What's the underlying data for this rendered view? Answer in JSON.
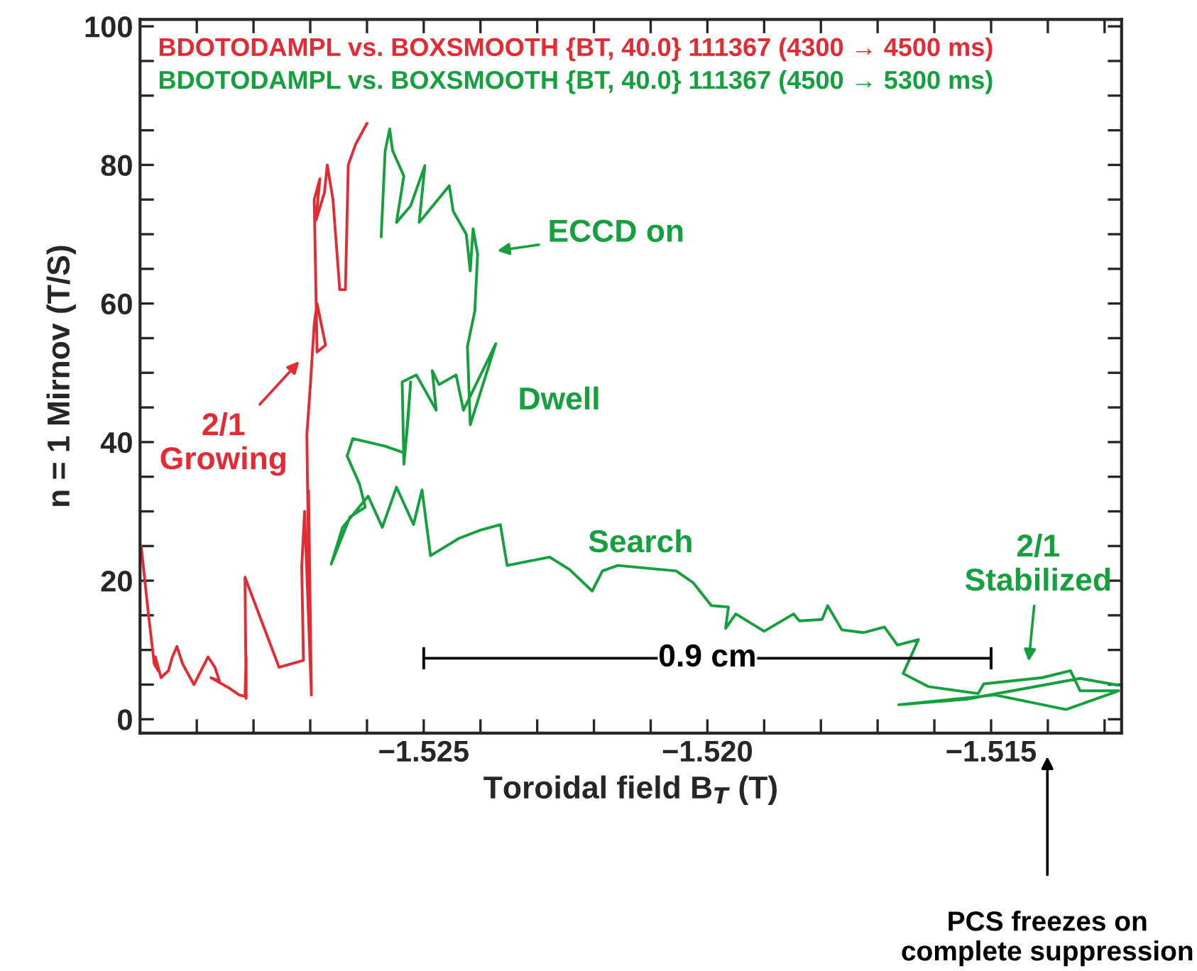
{
  "chart_data": {
    "type": "line",
    "xlabel": "Toroidal field B$_{T}$ (T)",
    "ylabel": "n = 1 Mirnov (T/S)",
    "xlim": [
      -1.53,
      -1.5127
    ],
    "ylim": [
      -2,
      101
    ],
    "xticks": [
      {
        "value": -1.529,
        "label": null
      },
      {
        "value": -1.528,
        "label": null
      },
      {
        "value": -1.527,
        "label": null
      },
      {
        "value": -1.526,
        "label": null
      },
      {
        "value": -1.525,
        "label": "−1.525"
      },
      {
        "value": -1.524,
        "label": null
      },
      {
        "value": -1.523,
        "label": null
      },
      {
        "value": -1.522,
        "label": null
      },
      {
        "value": -1.521,
        "label": null
      },
      {
        "value": -1.52,
        "label": "−1.520"
      },
      {
        "value": -1.519,
        "label": null
      },
      {
        "value": -1.518,
        "label": null
      },
      {
        "value": -1.517,
        "label": null
      },
      {
        "value": -1.516,
        "label": null
      },
      {
        "value": -1.515,
        "label": "−1.515"
      },
      {
        "value": -1.514,
        "label": null
      },
      {
        "value": -1.513,
        "label": null
      }
    ],
    "yticks": [
      0,
      {
        "value": 5,
        "label": null
      },
      {
        "value": 10,
        "label": null
      },
      {
        "value": 15,
        "label": null
      },
      20,
      {
        "value": 25,
        "label": null
      },
      {
        "value": 30,
        "label": null
      },
      {
        "value": 35,
        "label": null
      },
      40,
      {
        "value": 45,
        "label": null
      },
      {
        "value": 50,
        "label": null
      },
      {
        "value": 55,
        "label": null
      },
      60,
      {
        "value": 65,
        "label": null
      },
      {
        "value": 70,
        "label": null
      },
      {
        "value": 75,
        "label": null
      },
      80,
      {
        "value": 85,
        "label": null
      },
      {
        "value": 90,
        "label": null
      },
      {
        "value": 95,
        "label": null
      },
      100
    ],
    "grid": false,
    "legend": "top left",
    "marker": "none",
    "line_style": "solid",
    "series": [
      {
        "name": "BDOTODAMPL vs. BOXSMOOTH {BT, 40.0} 111367 (4300 → 4500 ms)",
        "color": "#e22b33",
        "x": [
          -1.52998,
          -1.52985,
          -1.52975,
          -1.52968,
          -1.52973,
          -1.52963,
          -1.5295,
          -1.52943,
          -1.52935,
          -1.52925,
          -1.52905,
          -1.5288,
          -1.52868,
          -1.5286,
          -1.52875,
          -1.52843,
          -1.52825,
          -1.52815,
          -1.52813,
          -1.52813,
          -1.52815,
          -1.52755,
          -1.52712,
          -1.52715,
          -1.5271,
          -1.52698,
          -1.52703,
          -1.52702,
          -1.52706,
          -1.527,
          -1.52693,
          -1.52688,
          -1.52673,
          -1.52688,
          -1.52693,
          -1.52683,
          -1.5269,
          -1.52675,
          -1.5267,
          -1.5266,
          -1.52648,
          -1.52638,
          -1.52633,
          -1.5262,
          -1.526
        ],
        "values": [
          25,
          15,
          8,
          7,
          9,
          6,
          7,
          9,
          10.5,
          8,
          5,
          9,
          7.5,
          5.5,
          6,
          4.5,
          3.5,
          3.3,
          9,
          3,
          20.5,
          7.5,
          8.5,
          22,
          30,
          3.5,
          33,
          18,
          41,
          48,
          57,
          60,
          54,
          53,
          75,
          78,
          72,
          76,
          80,
          75,
          62,
          62,
          80,
          83,
          86
        ]
      },
      {
        "name": "BDOTODAMPL vs. BOXSMOOTH {BT, 40.0} 111367 (4500 → 5300 ms)",
        "color": "#13a03d",
        "x": [
          -1.52575,
          -1.52568,
          -1.5256,
          -1.52555,
          -1.52535,
          -1.52548,
          -1.52523,
          -1.52498,
          -1.52508,
          -1.52455,
          -1.52448,
          -1.52425,
          -1.52418,
          -1.52413,
          -1.52405,
          -1.5241,
          -1.52423,
          -1.52418,
          -1.52373,
          -1.5243,
          -1.52443,
          -1.52473,
          -1.52485,
          -1.52478,
          -1.52513,
          -1.52538,
          -1.52535,
          -1.52528,
          -1.52523,
          -1.52533,
          -1.52568,
          -1.52625,
          -1.52635,
          -1.52613,
          -1.52603,
          -1.5263,
          -1.52663,
          -1.52643,
          -1.52598,
          -1.52573,
          -1.52548,
          -1.52518,
          -1.52503,
          -1.52488,
          -1.52438,
          -1.524,
          -1.52365,
          -1.52353,
          -1.52278,
          -1.52243,
          -1.52203,
          -1.52185,
          -1.52158,
          -1.52055,
          -1.52025,
          -1.51993,
          -1.51963,
          -1.51968,
          -1.5195,
          -1.519,
          -1.51848,
          -1.51838,
          -1.51798,
          -1.51788,
          -1.51763,
          -1.51725,
          -1.51688,
          -1.51665,
          -1.51628,
          -1.51655,
          -1.5161,
          -1.51523,
          -1.51513,
          -1.5141,
          -1.5136,
          -1.51343,
          -1.51275,
          -1.51368,
          -1.51493,
          -1.51663,
          -1.51543,
          -1.51343,
          -1.51275
        ],
        "values": [
          69.6,
          82,
          85.2,
          82.1,
          78.4,
          71.7,
          74.1,
          79.9,
          71.7,
          77,
          73.3,
          70,
          64.7,
          70.8,
          67.1,
          58.9,
          53.8,
          42.5,
          54.2,
          44.6,
          49.7,
          48.3,
          50.3,
          44.6,
          49.7,
          48.7,
          36.8,
          42.9,
          48.7,
          38.4,
          39.4,
          40.5,
          38,
          33.9,
          30.6,
          29.2,
          22.4,
          27.7,
          32.2,
          27.7,
          33.5,
          28.1,
          33.1,
          23.6,
          26.1,
          27.3,
          28.1,
          22.2,
          23.4,
          21.6,
          18.5,
          21.4,
          22.2,
          21.4,
          19.7,
          16.4,
          16.2,
          13.1,
          15.2,
          12.7,
          15.2,
          14.2,
          14.4,
          16.4,
          12.9,
          12.5,
          13.3,
          10.7,
          11.5,
          6.6,
          4.7,
          3.7,
          5.1,
          6,
          7,
          4.1,
          4.1,
          1.4,
          3.5,
          2.1,
          2.9,
          5.9,
          4.9
        ]
      },
      {
        "name": "0.9 cm",
        "type": "line",
        "color": "#000000",
        "x": [
          -1.525,
          -1.515
        ],
        "values": [
          8.8,
          8.8
        ],
        "errors": [
          1.6,
          1.6
        ]
      }
    ],
    "annotations": [
      "2/1\nGrowing",
      "ECCD on",
      "Dwell",
      "Search",
      "2/1\nStabilized",
      "PCS freezes on\ncomplete suppression"
    ]
  }
}
